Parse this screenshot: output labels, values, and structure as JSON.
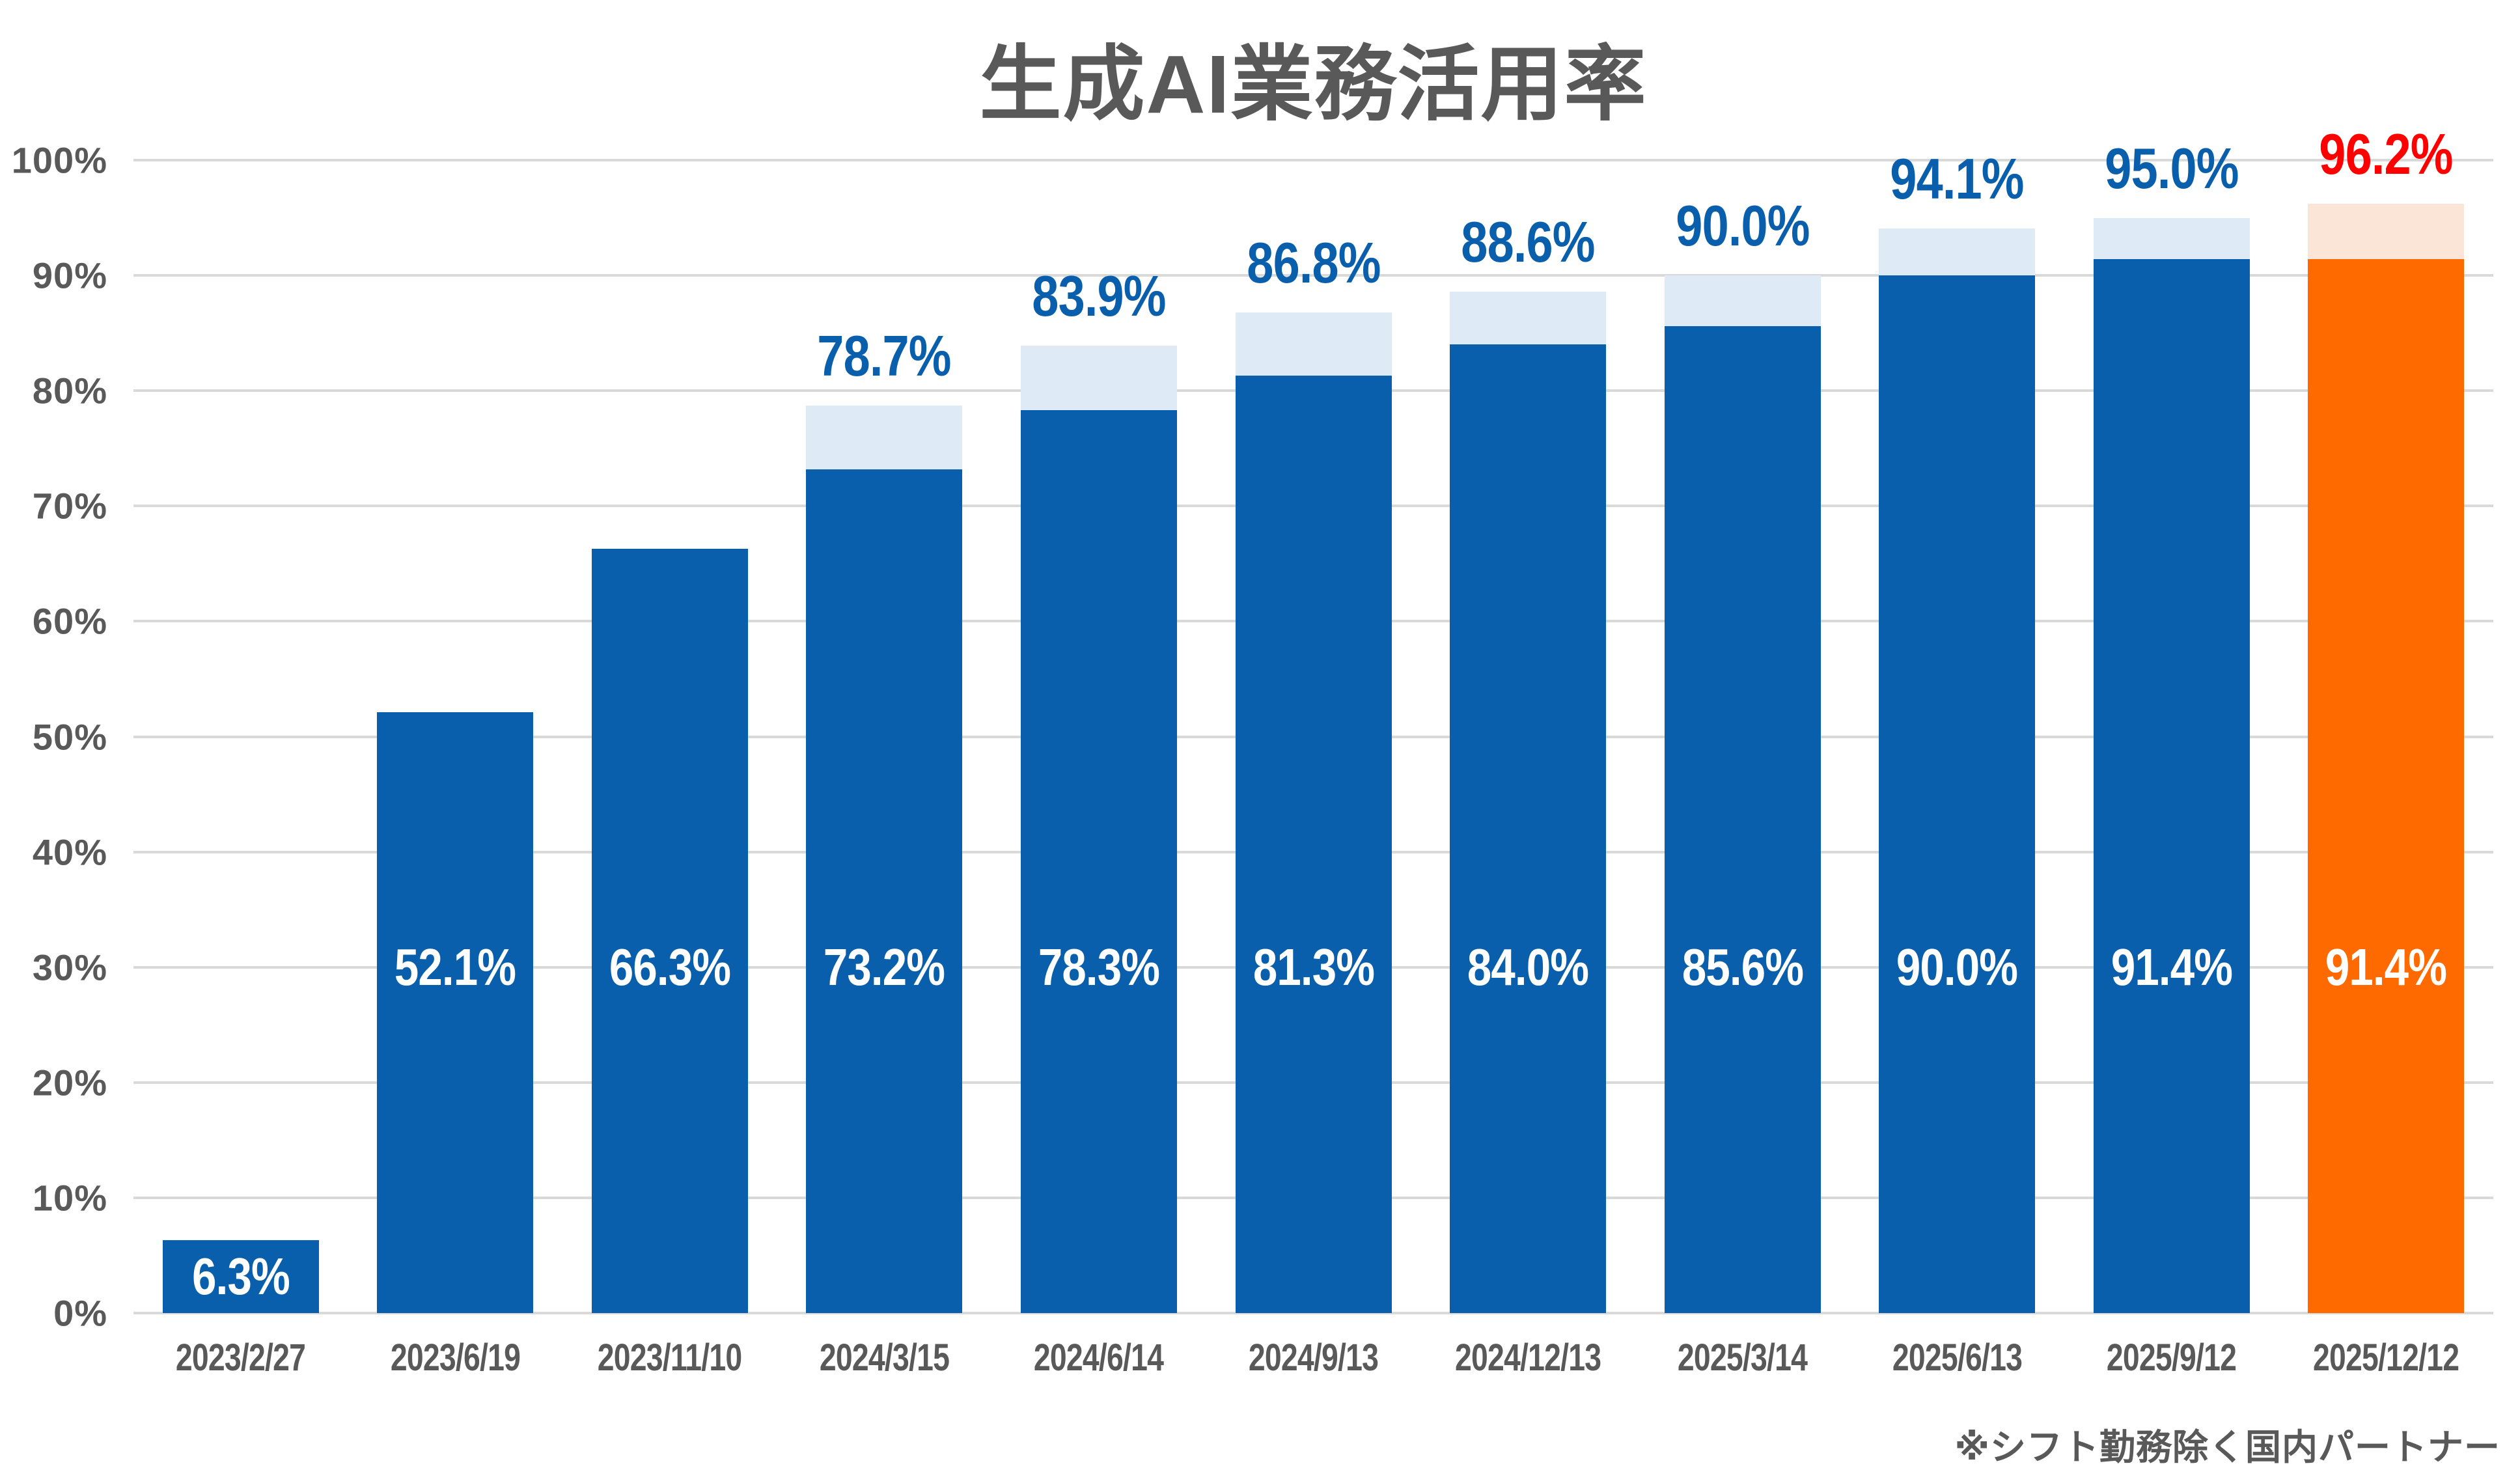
{
  "footnote": "※シフト勤務除く国内パートナー",
  "colors": {
    "bar_blue": "#0A5FAC",
    "cap_blue": "#DEEBF7",
    "bar_orange": "#FF6A00",
    "cap_orange": "#FBE5D6",
    "label_blue": "#0A5FAC",
    "label_red": "#FF0000",
    "inside_label": "#FFFFFF",
    "text_gray": "#595959",
    "gridline": "#D9D9D9"
  },
  "chart_data": {
    "type": "bar",
    "stacked": true,
    "title": "生成AI業務活用率",
    "categories": [
      "2023/2/27",
      "2023/6/19",
      "2023/11/10",
      "2024/3/15",
      "2024/6/14",
      "2024/9/13",
      "2024/12/13",
      "2025/3/14",
      "2025/6/13",
      "2025/9/12",
      "2025/12/12"
    ],
    "series": [
      {
        "name": "base",
        "values": [
          6.3,
          52.1,
          66.3,
          73.2,
          78.3,
          81.3,
          84.0,
          85.6,
          90.0,
          91.4,
          91.4
        ]
      },
      {
        "name": "total",
        "values": [
          null,
          null,
          null,
          78.7,
          83.9,
          86.8,
          88.6,
          90.0,
          94.1,
          95.0,
          96.2
        ]
      }
    ],
    "base_labels": [
      "6.3%",
      "52.1%",
      "66.3%",
      "73.2%",
      "78.3%",
      "81.3%",
      "84.0%",
      "85.6%",
      "90.0%",
      "91.4%",
      "91.4%"
    ],
    "total_labels": [
      null,
      null,
      null,
      "78.7%",
      "83.9%",
      "86.8%",
      "88.6%",
      "90.0%",
      "94.1%",
      "95.0%",
      "96.2%"
    ],
    "y_ticks": [
      "100%",
      "90%",
      "80%",
      "70%",
      "60%",
      "50%",
      "40%",
      "30%",
      "20%",
      "10%",
      "0%"
    ],
    "ylim": [
      0,
      100
    ],
    "grid": true,
    "legend": false,
    "highlight_index": 10,
    "inside_label_center_pct": 30
  }
}
